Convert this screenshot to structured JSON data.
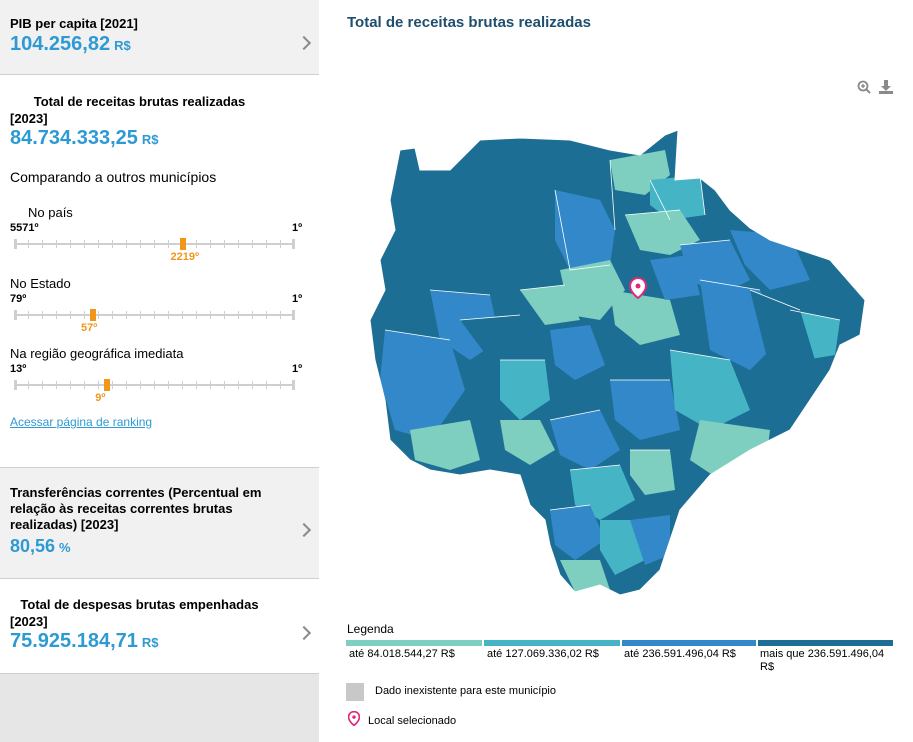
{
  "pib": {
    "label": "PIB per capita [2021]",
    "value": "104.256,82",
    "unit": "R$"
  },
  "receitas": {
    "title": "Total de receitas brutas realizadas",
    "year": "[2023]",
    "value": "84.734.333,25",
    "unit": "R$",
    "compare_title": "Comparando a outros municípios",
    "rankings": [
      {
        "label": "No país",
        "left": "5571º",
        "right": "1º",
        "value": "2219º",
        "fraction": 0.602
      },
      {
        "label": "No Estado",
        "left": "79º",
        "right": "1º",
        "value": "57º",
        "fraction": 0.282
      },
      {
        "label": "Na região geográfica imediata",
        "left": "13º",
        "right": "1º",
        "value": "9º",
        "fraction": 0.333
      }
    ],
    "link": "Acessar página de ranking"
  },
  "transferencias": {
    "label": "Transferências correntes (Percentual em relação às receitas correntes brutas realizadas) [2023]",
    "value": "80,56",
    "unit": "%"
  },
  "despesas": {
    "title": "Total de despesas brutas empenhadas",
    "year": "[2023]",
    "value": "75.925.184,71",
    "unit": "R$"
  },
  "map": {
    "title": "Total de receitas brutas realizadas",
    "tools": [
      "zoom-in-icon",
      "download-icon"
    ],
    "legend_title": "Legenda",
    "legend": [
      {
        "label": "até 84.018.544,27 R$",
        "color": "#7ecfbf"
      },
      {
        "label": "até 127.069.336,02 R$",
        "color": "#45b5c6"
      },
      {
        "label": "até 236.591.496,04 R$",
        "color": "#3388c9"
      },
      {
        "label": "mais que 236.591.496,04 R$",
        "color": "#1d6e94"
      }
    ],
    "na_label": "Dado inexistente para este município",
    "selected_label": "Local selecionado",
    "selected_color": "#e0287a"
  }
}
